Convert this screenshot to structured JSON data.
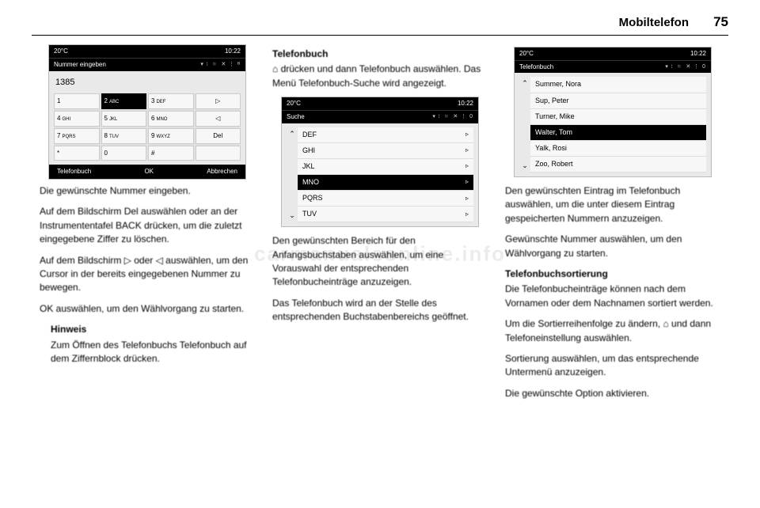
{
  "header": {
    "title": "Mobiltelefon",
    "page": "75"
  },
  "col1": {
    "shot": {
      "temp": "20°C",
      "time": "10:22",
      "screenTitle": "Nummer eingeben",
      "icons": "▾ ⁞ ◾ ✕ ⋮ ᴮ",
      "number": "1385",
      "keys": [
        {
          "t": "1",
          "s": ""
        },
        {
          "t": "2",
          "s": "ABC",
          "sel": true
        },
        {
          "t": "3",
          "s": "DEF"
        },
        {
          "t": "▷",
          "side": true
        },
        {
          "t": "4",
          "s": "GHI"
        },
        {
          "t": "5",
          "s": "JKL"
        },
        {
          "t": "6",
          "s": "MNO"
        },
        {
          "t": "◁",
          "side": true
        },
        {
          "t": "7",
          "s": "PQRS"
        },
        {
          "t": "8",
          "s": "TUV"
        },
        {
          "t": "9",
          "s": "WXYZ"
        },
        {
          "t": "Del",
          "side": true
        },
        {
          "t": "*",
          "s": ""
        },
        {
          "t": "0",
          "s": ""
        },
        {
          "t": "#",
          "s": ""
        },
        {
          "t": "",
          "side": true
        }
      ],
      "footer": [
        "Telefonbuch",
        "OK",
        "Abbrechen"
      ]
    },
    "p1": "Die gewünschte Nummer eingeben.",
    "p2": "Auf dem Bildschirm Del auswählen oder an der Instrumententafel BACK drücken, um die zuletzt eingegebene Ziffer zu löschen.",
    "p3": "Auf dem Bildschirm ▷ oder ◁ aus­wählen, um den Cursor in der bereits eingegebenen Nummer zu bewegen.",
    "p4": "OK auswählen, um den Wählvorgang zu starten.",
    "p5h": "Hinweis",
    "p5": "Zum Öffnen des Telefonbuchs Telefonbuch auf dem Ziffernblock drücken."
  },
  "col2": {
    "h": "Telefonbuch",
    "p1": "⌂ drücken und dann Telefonbuch auswählen. Das Menü Telefonbuch-Suche wird angezeigt.",
    "shot": {
      "temp": "20°C",
      "time": "10:22",
      "screenTitle": "Suche",
      "icons": "▾ ⁞ ◾ ✕ ⋮   0",
      "rows": [
        {
          "t": "DEF"
        },
        {
          "t": "GHI"
        },
        {
          "t": "JKL"
        },
        {
          "t": "MNO",
          "sel": true
        },
        {
          "t": "PQRS"
        },
        {
          "t": "TUV"
        }
      ]
    },
    "p2": "Den gewünschten Bereich für den Anfangsbuchstaben auswählen, um eine Vorauswahl der entsprechenden Telefonbucheinträge anzuzeigen.",
    "p3": "Das Telefonbuch wird an der Stelle des entsprechenden Buchstabenbe­reichs geöffnet."
  },
  "col3": {
    "shot": {
      "temp": "20°C",
      "time": "10:22",
      "screenTitle": "Telefonbuch",
      "icons": "▾ ⁞ ◾ ✕ ⋮   0",
      "rows": [
        {
          "t": "Summer, Nora"
        },
        {
          "t": "Sup, Peter"
        },
        {
          "t": "Turner, Mike"
        },
        {
          "t": "Walter, Tom",
          "sel": true
        },
        {
          "t": "Yalk, Rosi"
        },
        {
          "t": "Zoo, Robert"
        }
      ]
    },
    "p1": "Den gewünschten Eintrag im Telefon­buch auswählen, um die unter die­sem Eintrag gespeicherten Nummern anzuzeigen.",
    "p2": "Gewünschte Nummer auswählen, um den Wählvorgang zu starten.",
    "h2": "Telefonbuchsortierung",
    "p3": "Die Telefonbucheinträge können nach dem Vornamen oder dem Nach­namen sortiert werden.",
    "p4": "Um die Sortierreihenfolge zu ändern, ⌂ und dann Telefoneinstellung aus­wählen.",
    "p5": "Sortierung auswählen, um das ent­sprechende Untermenü anzuzeigen.",
    "p6": "Die gewünschte Option aktivieren."
  },
  "watermark": "carmanualsonline.info"
}
